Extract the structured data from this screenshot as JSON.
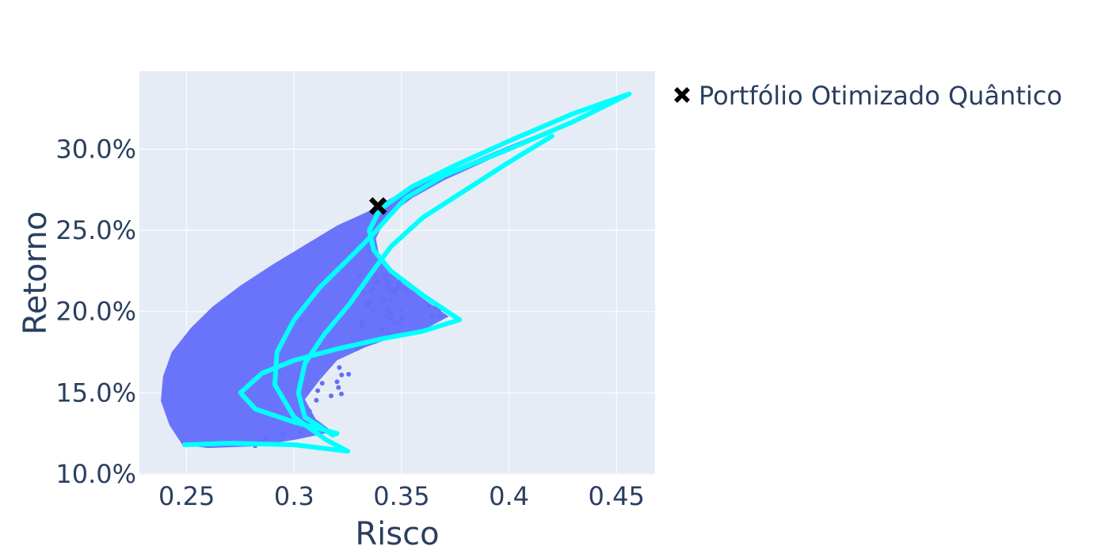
{
  "chart_data": {
    "type": "scatter",
    "title": "",
    "xlabel": "Risco",
    "ylabel": "Retorno",
    "xlim": [
      0.228,
      0.468
    ],
    "ylim": [
      0.0995,
      0.348
    ],
    "x_ticks": [
      0.25,
      0.3,
      0.35,
      0.4,
      0.45
    ],
    "x_tick_labels": [
      "0.25",
      "0.3",
      "0.35",
      "0.4",
      "0.45"
    ],
    "y_ticks": [
      0.1,
      0.15,
      0.2,
      0.25,
      0.3
    ],
    "y_tick_labels": [
      "10.0%",
      "15.0%",
      "20.0%",
      "25.0%",
      "30.0%"
    ],
    "grid": true,
    "legend_position": "right",
    "plot_background": "#e5ecf6",
    "series": [
      {
        "name": "",
        "kind": "scatter-cloud",
        "color": "#636efa",
        "region_upper": [
          [
            0.248,
            0.118
          ],
          [
            0.242,
            0.13
          ],
          [
            0.238,
            0.145
          ],
          [
            0.239,
            0.16
          ],
          [
            0.243,
            0.175
          ],
          [
            0.252,
            0.19
          ],
          [
            0.262,
            0.203
          ],
          [
            0.275,
            0.216
          ],
          [
            0.29,
            0.229
          ],
          [
            0.305,
            0.241
          ],
          [
            0.32,
            0.253
          ],
          [
            0.335,
            0.262
          ],
          [
            0.348,
            0.272
          ],
          [
            0.362,
            0.281
          ],
          [
            0.38,
            0.291
          ],
          [
            0.4,
            0.302
          ],
          [
            0.415,
            0.31
          ],
          [
            0.43,
            0.318
          ]
        ],
        "region_lower": [
          [
            0.43,
            0.318
          ],
          [
            0.41,
            0.305
          ],
          [
            0.39,
            0.293
          ],
          [
            0.37,
            0.281
          ],
          [
            0.355,
            0.27
          ],
          [
            0.343,
            0.258
          ],
          [
            0.338,
            0.245
          ],
          [
            0.34,
            0.232
          ],
          [
            0.348,
            0.22
          ],
          [
            0.36,
            0.208
          ],
          [
            0.372,
            0.197
          ],
          [
            0.362,
            0.19
          ],
          [
            0.348,
            0.185
          ],
          [
            0.333,
            0.178
          ],
          [
            0.32,
            0.17
          ],
          [
            0.312,
            0.158
          ],
          [
            0.305,
            0.146
          ],
          [
            0.31,
            0.134
          ],
          [
            0.318,
            0.126
          ],
          [
            0.3,
            0.121
          ],
          [
            0.28,
            0.117
          ],
          [
            0.26,
            0.116
          ]
        ]
      },
      {
        "name": "",
        "kind": "line",
        "color": "#00ffff",
        "x": [
          0.249,
          0.27,
          0.3,
          0.325,
          0.315,
          0.3,
          0.291,
          0.292,
          0.3,
          0.312,
          0.325,
          0.337,
          0.345,
          0.352,
          0.37,
          0.4,
          0.43,
          0.456,
          0.43,
          0.4,
          0.375,
          0.355,
          0.34,
          0.335,
          0.337,
          0.345,
          0.36,
          0.377,
          0.36,
          0.34,
          0.32,
          0.3,
          0.285,
          0.275,
          0.282,
          0.3,
          0.32,
          0.318,
          0.305,
          0.302,
          0.305,
          0.314,
          0.326,
          0.335,
          0.345,
          0.36,
          0.38,
          0.4,
          0.42
        ],
        "y": [
          0.118,
          0.119,
          0.118,
          0.114,
          0.121,
          0.135,
          0.155,
          0.175,
          0.195,
          0.215,
          0.232,
          0.248,
          0.26,
          0.27,
          0.284,
          0.3,
          0.317,
          0.334,
          0.322,
          0.305,
          0.29,
          0.277,
          0.263,
          0.25,
          0.238,
          0.225,
          0.21,
          0.195,
          0.188,
          0.183,
          0.177,
          0.17,
          0.162,
          0.15,
          0.14,
          0.132,
          0.125,
          0.124,
          0.135,
          0.15,
          0.168,
          0.186,
          0.205,
          0.222,
          0.24,
          0.258,
          0.275,
          0.292,
          0.308
        ]
      },
      {
        "name": "Portfólio Otimizado Quântico",
        "kind": "marker",
        "color": "#000000",
        "symbol": "x",
        "x": [
          0.339
        ],
        "y": [
          0.265
        ]
      }
    ]
  }
}
